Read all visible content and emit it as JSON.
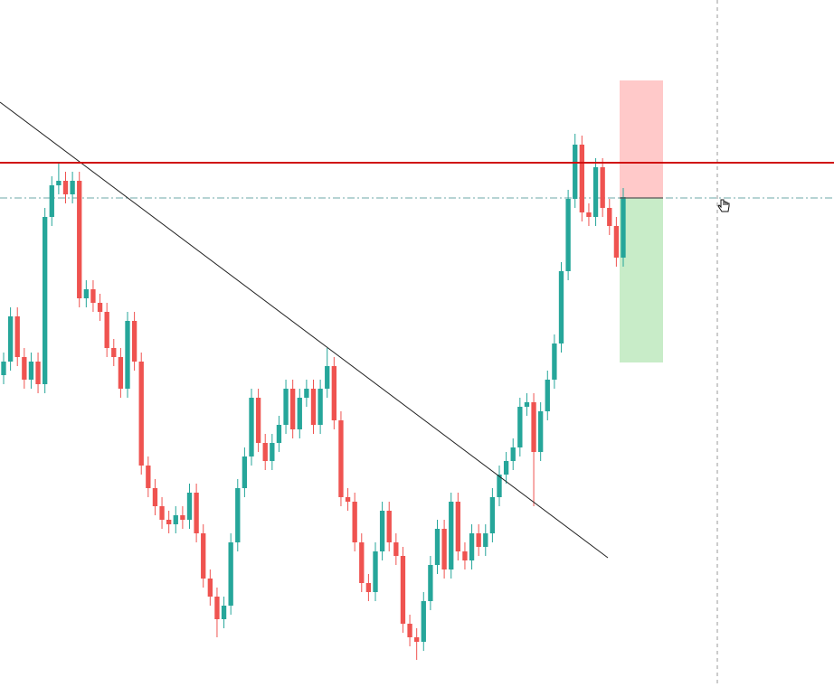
{
  "chart_data": {
    "type": "candlestick",
    "up_color": "#26a69a",
    "down_color": "#ef5350",
    "ylim": [
      0,
      760
    ],
    "open": [
      345,
      360,
      410,
      365,
      340,
      360,
      335,
      520,
      555,
      560,
      545,
      560,
      430,
      440,
      425,
      415,
      375,
      365,
      330,
      405,
      360,
      245,
      220,
      200,
      185,
      180,
      190,
      185,
      215,
      170,
      120,
      100,
      75,
      90,
      160,
      220,
      255,
      320,
      270,
      250,
      270,
      290,
      330,
      285,
      320,
      330,
      290,
      330,
      355,
      295,
      210,
      205,
      160,
      115,
      105,
      150,
      195,
      160,
      145,
      70,
      55,
      50,
      95,
      135,
      175,
      130,
      205,
      150,
      140,
      170,
      155,
      170,
      210,
      235,
      250,
      265,
      310,
      315,
      260,
      305,
      340,
      380,
      460,
      540,
      600,
      525,
      520,
      575,
      530,
      510,
      475
    ],
    "high": [
      370,
      420,
      420,
      375,
      370,
      370,
      530,
      565,
      580,
      570,
      570,
      570,
      450,
      450,
      435,
      425,
      385,
      375,
      415,
      415,
      370,
      255,
      230,
      210,
      195,
      200,
      200,
      225,
      225,
      180,
      130,
      110,
      100,
      170,
      230,
      265,
      330,
      330,
      280,
      280,
      300,
      340,
      340,
      330,
      340,
      340,
      340,
      375,
      365,
      305,
      220,
      215,
      170,
      125,
      160,
      205,
      205,
      170,
      155,
      80,
      65,
      105,
      145,
      185,
      185,
      215,
      215,
      160,
      180,
      180,
      180,
      220,
      245,
      260,
      275,
      320,
      325,
      325,
      315,
      350,
      390,
      470,
      550,
      612,
      610,
      535,
      585,
      585,
      540,
      520,
      552
    ],
    "low": [
      335,
      350,
      355,
      330,
      330,
      325,
      325,
      510,
      545,
      535,
      535,
      420,
      420,
      415,
      405,
      365,
      355,
      320,
      320,
      350,
      235,
      210,
      190,
      175,
      170,
      170,
      175,
      175,
      160,
      110,
      90,
      55,
      65,
      80,
      150,
      210,
      245,
      260,
      240,
      240,
      260,
      280,
      275,
      275,
      310,
      280,
      280,
      320,
      285,
      200,
      195,
      150,
      105,
      95,
      95,
      140,
      150,
      135,
      60,
      45,
      30,
      40,
      85,
      125,
      120,
      120,
      140,
      130,
      130,
      145,
      145,
      160,
      200,
      225,
      240,
      255,
      300,
      200,
      250,
      295,
      330,
      370,
      450,
      530,
      515,
      510,
      510,
      520,
      500,
      465,
      465
    ],
    "close": [
      360,
      410,
      365,
      340,
      360,
      335,
      520,
      555,
      560,
      545,
      560,
      430,
      440,
      425,
      415,
      375,
      365,
      330,
      405,
      360,
      245,
      220,
      200,
      185,
      180,
      190,
      185,
      215,
      170,
      120,
      100,
      75,
      90,
      160,
      220,
      255,
      320,
      270,
      250,
      270,
      290,
      330,
      285,
      320,
      330,
      290,
      330,
      355,
      295,
      210,
      205,
      160,
      115,
      105,
      150,
      195,
      160,
      145,
      70,
      55,
      50,
      95,
      135,
      175,
      130,
      205,
      150,
      140,
      170,
      155,
      170,
      210,
      235,
      250,
      265,
      310,
      315,
      260,
      305,
      340,
      380,
      460,
      540,
      600,
      525,
      520,
      575,
      530,
      510,
      475,
      542
    ]
  }
}
